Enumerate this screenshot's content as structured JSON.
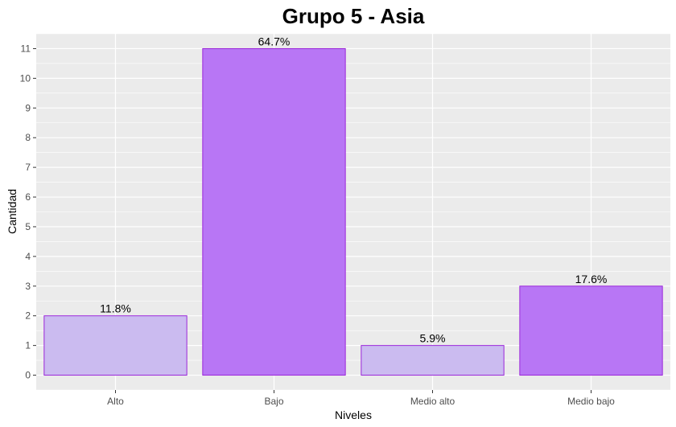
{
  "chart_data": {
    "type": "bar",
    "title": "Grupo 5 - Asia",
    "xlabel": "Niveles",
    "ylabel": "Cantidad",
    "categories": [
      "Alto",
      "Bajo",
      "Medio alto",
      "Medio bajo"
    ],
    "values": [
      2,
      11,
      1,
      3
    ],
    "data_labels": [
      "11.8%",
      "64.7%",
      "5.9%",
      "17.6%"
    ],
    "bar_colors": [
      "#cbbbf0",
      "#b876f5",
      "#cbbbf0",
      "#b876f5"
    ],
    "bar_outline": "#9a26d9",
    "panel_background": "#ebebeb",
    "grid_color": "#ffffff",
    "ylim": [
      -0.5,
      11.5
    ],
    "yticks": [
      0,
      1,
      2,
      3,
      4,
      5,
      6,
      7,
      8,
      9,
      10,
      11
    ],
    "grid": true,
    "legend": "none"
  }
}
